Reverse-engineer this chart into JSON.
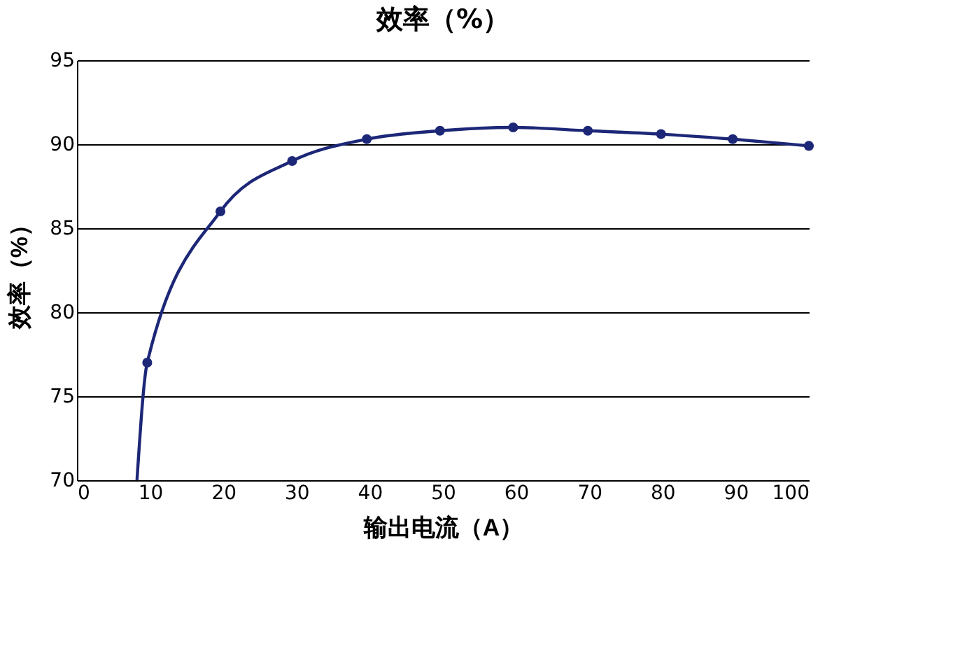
{
  "chart_data": {
    "type": "line",
    "title": "效率（%）",
    "xlabel": "输出电流（A）",
    "ylabel": "效率（%）",
    "xlim": [
      0,
      100
    ],
    "xticks": [
      0,
      10,
      20,
      30,
      40,
      50,
      60,
      70,
      80,
      90,
      100
    ],
    "ylim": [
      70,
      95
    ],
    "yticks": [
      70,
      75,
      80,
      85,
      90,
      95
    ],
    "grid": "y",
    "series": [
      {
        "color": "#1d2777",
        "marker": "none",
        "x": [
          8.2,
          9.6,
          19.6,
          29.4,
          39.6,
          49.6,
          59.6,
          69.8,
          79.8,
          89.6,
          100
        ],
        "values": [
          70,
          77,
          86,
          89,
          90.3,
          90.8,
          91,
          90.8,
          90.6,
          90.3,
          89.9
        ]
      },
      {
        "type": "scatter",
        "color": "#1d2777",
        "marker": "circle",
        "x": [
          9.6,
          19.6,
          29.4,
          39.6,
          49.6,
          59.6,
          69.8,
          79.8,
          89.6,
          100
        ],
        "values": [
          77,
          86,
          89,
          90.3,
          90.8,
          91,
          90.8,
          90.6,
          90.3,
          89.9
        ]
      }
    ]
  }
}
